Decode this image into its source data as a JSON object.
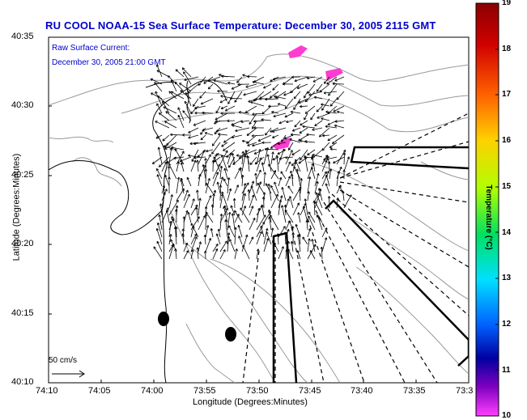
{
  "title": "RU COOL  NOAA-15  Sea Surface Temperature:  December 30, 2005 2115 GMT",
  "annotation_line1": "Raw Surface Current:",
  "annotation_line2": "December 30, 2005 21:00 GMT",
  "scale_label": "50 cm/s",
  "y_axis_title": "Latitude (Degrees:Minutes)",
  "x_axis_title": "Longitude (Degrees:Minutes)",
  "y_ticks": [
    "40:35",
    "40:30",
    "40:25",
    "40:20",
    "40:15",
    "40:10"
  ],
  "x_ticks": [
    "74:10",
    "74:05",
    "74:00",
    "73:55",
    "73:50",
    "73:45",
    "73:40",
    "73:35",
    "73:3"
  ],
  "colorbar": {
    "title": "Temperature (°C)",
    "ticks": [
      "19",
      "18",
      "17",
      "16",
      "15",
      "14",
      "13",
      "12",
      "11",
      "10"
    ],
    "colors": [
      "#8b0000",
      "#d00000",
      "#ff6000",
      "#ffd000",
      "#b0ff00",
      "#00e060",
      "#00e0ff",
      "#0060ff",
      "#0000a0",
      "#8000c0",
      "#ff40ff"
    ]
  },
  "colors": {
    "sst_patch": "#ff3cd0",
    "current_arrow": "#000000",
    "coastline": "#000000",
    "isobath": "#888888",
    "title_text": "#0000cc"
  }
}
